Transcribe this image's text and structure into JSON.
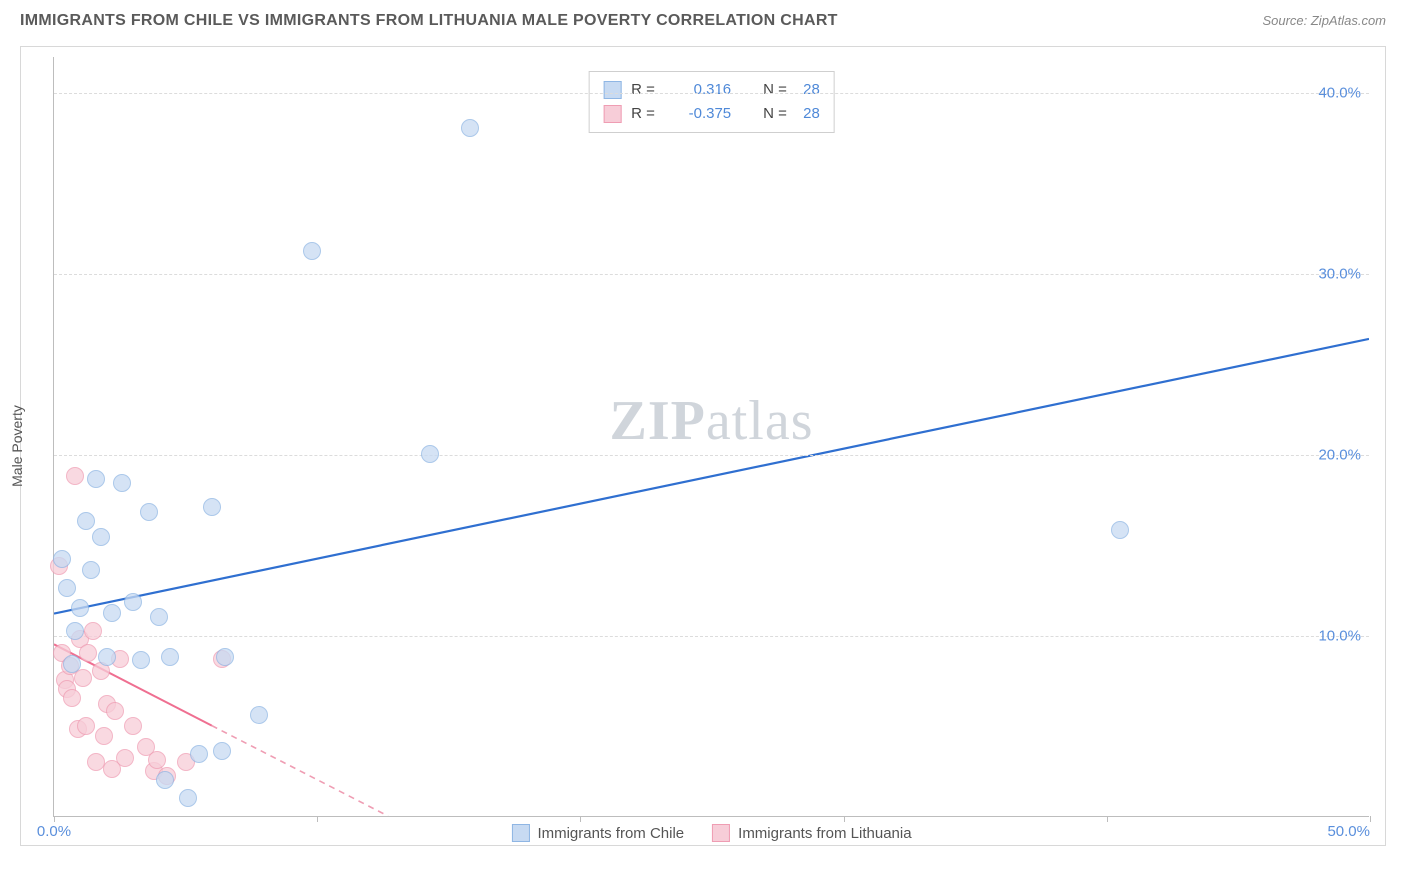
{
  "title": "IMMIGRANTS FROM CHILE VS IMMIGRANTS FROM LITHUANIA MALE POVERTY CORRELATION CHART",
  "source": "Source: ZipAtlas.com",
  "watermark": {
    "bold": "ZIP",
    "rest": "atlas"
  },
  "chart": {
    "type": "scatter",
    "ylabel": "Male Poverty",
    "xlim": [
      0,
      50
    ],
    "ylim": [
      0,
      42
    ],
    "x_ticks": [
      0,
      10,
      20,
      30,
      40,
      50
    ],
    "x_tick_labels": {
      "0": "0.0%",
      "50": "50.0%"
    },
    "y_gridlines": [
      10,
      20,
      30,
      40
    ],
    "y_tick_labels": {
      "10": "10.0%",
      "20": "20.0%",
      "30": "30.0%",
      "40": "40.0%"
    },
    "background_color": "#ffffff",
    "grid_color": "#dcdcdc",
    "axis_color": "#bdbdbd",
    "tick_label_color": "#5a8fdc",
    "series": [
      {
        "name": "Immigrants from Chile",
        "fill": "#c7daf2",
        "stroke": "#8fb6e4",
        "opacity": 0.75,
        "radius": 9,
        "points": [
          [
            0.3,
            14.2
          ],
          [
            0.5,
            12.6
          ],
          [
            0.7,
            8.4
          ],
          [
            0.8,
            10.2
          ],
          [
            1.0,
            11.5
          ],
          [
            1.2,
            16.3
          ],
          [
            1.4,
            13.6
          ],
          [
            1.6,
            18.6
          ],
          [
            1.8,
            15.4
          ],
          [
            2.0,
            8.8
          ],
          [
            2.2,
            11.2
          ],
          [
            2.6,
            18.4
          ],
          [
            3.0,
            11.8
          ],
          [
            3.3,
            8.6
          ],
          [
            3.6,
            16.8
          ],
          [
            4.0,
            11.0
          ],
          [
            4.2,
            2.0
          ],
          [
            4.4,
            8.8
          ],
          [
            5.1,
            1.0
          ],
          [
            5.5,
            3.4
          ],
          [
            6.0,
            17.1
          ],
          [
            6.4,
            3.6
          ],
          [
            6.5,
            8.8
          ],
          [
            7.8,
            5.6
          ],
          [
            9.8,
            31.2
          ],
          [
            14.3,
            20.0
          ],
          [
            15.8,
            38.0
          ],
          [
            40.5,
            15.8
          ]
        ],
        "trend": {
          "x1": 0,
          "y1": 11.2,
          "x2": 50,
          "y2": 26.4,
          "color": "#2f6fd0",
          "width": 2.2,
          "dash": "none"
        }
      },
      {
        "name": "Immigrants from Lithuania",
        "fill": "#f7cdd8",
        "stroke": "#ef9db3",
        "opacity": 0.75,
        "radius": 9,
        "points": [
          [
            0.2,
            13.8
          ],
          [
            0.3,
            9.0
          ],
          [
            0.4,
            7.5
          ],
          [
            0.5,
            7.0
          ],
          [
            0.6,
            8.3
          ],
          [
            0.7,
            6.5
          ],
          [
            0.8,
            18.8
          ],
          [
            0.9,
            4.8
          ],
          [
            1.0,
            9.8
          ],
          [
            1.1,
            7.6
          ],
          [
            1.2,
            5.0
          ],
          [
            1.3,
            9.0
          ],
          [
            1.5,
            10.2
          ],
          [
            1.6,
            3.0
          ],
          [
            1.8,
            8.0
          ],
          [
            1.9,
            4.4
          ],
          [
            2.0,
            6.2
          ],
          [
            2.2,
            2.6
          ],
          [
            2.3,
            5.8
          ],
          [
            2.5,
            8.7
          ],
          [
            2.7,
            3.2
          ],
          [
            3.0,
            5.0
          ],
          [
            3.5,
            3.8
          ],
          [
            3.8,
            2.5
          ],
          [
            3.9,
            3.1
          ],
          [
            4.3,
            2.2
          ],
          [
            5.0,
            3.0
          ],
          [
            6.4,
            8.7
          ]
        ],
        "trend_solid": {
          "x1": 0,
          "y1": 9.5,
          "x2": 6,
          "y2": 5.0,
          "color": "#ef6f91",
          "width": 2.0
        },
        "trend_dash": {
          "x1": 6,
          "y1": 5.0,
          "x2": 12.7,
          "y2": 0.0,
          "color": "#ef9db3",
          "width": 1.6
        }
      }
    ],
    "legend_top": [
      {
        "swatch_fill": "#c7daf2",
        "swatch_stroke": "#8fb6e4",
        "r_label": "R =",
        "r_value": "0.316",
        "n_label": "N =",
        "n_value": "28"
      },
      {
        "swatch_fill": "#f7cdd8",
        "swatch_stroke": "#ef9db3",
        "r_label": "R =",
        "r_value": "-0.375",
        "n_label": "N =",
        "n_value": "28"
      }
    ],
    "legend_bottom": [
      {
        "swatch_fill": "#c7daf2",
        "swatch_stroke": "#8fb6e4",
        "label": "Immigrants from Chile"
      },
      {
        "swatch_fill": "#f7cdd8",
        "swatch_stroke": "#ef9db3",
        "label": "Immigrants from Lithuania"
      }
    ]
  }
}
